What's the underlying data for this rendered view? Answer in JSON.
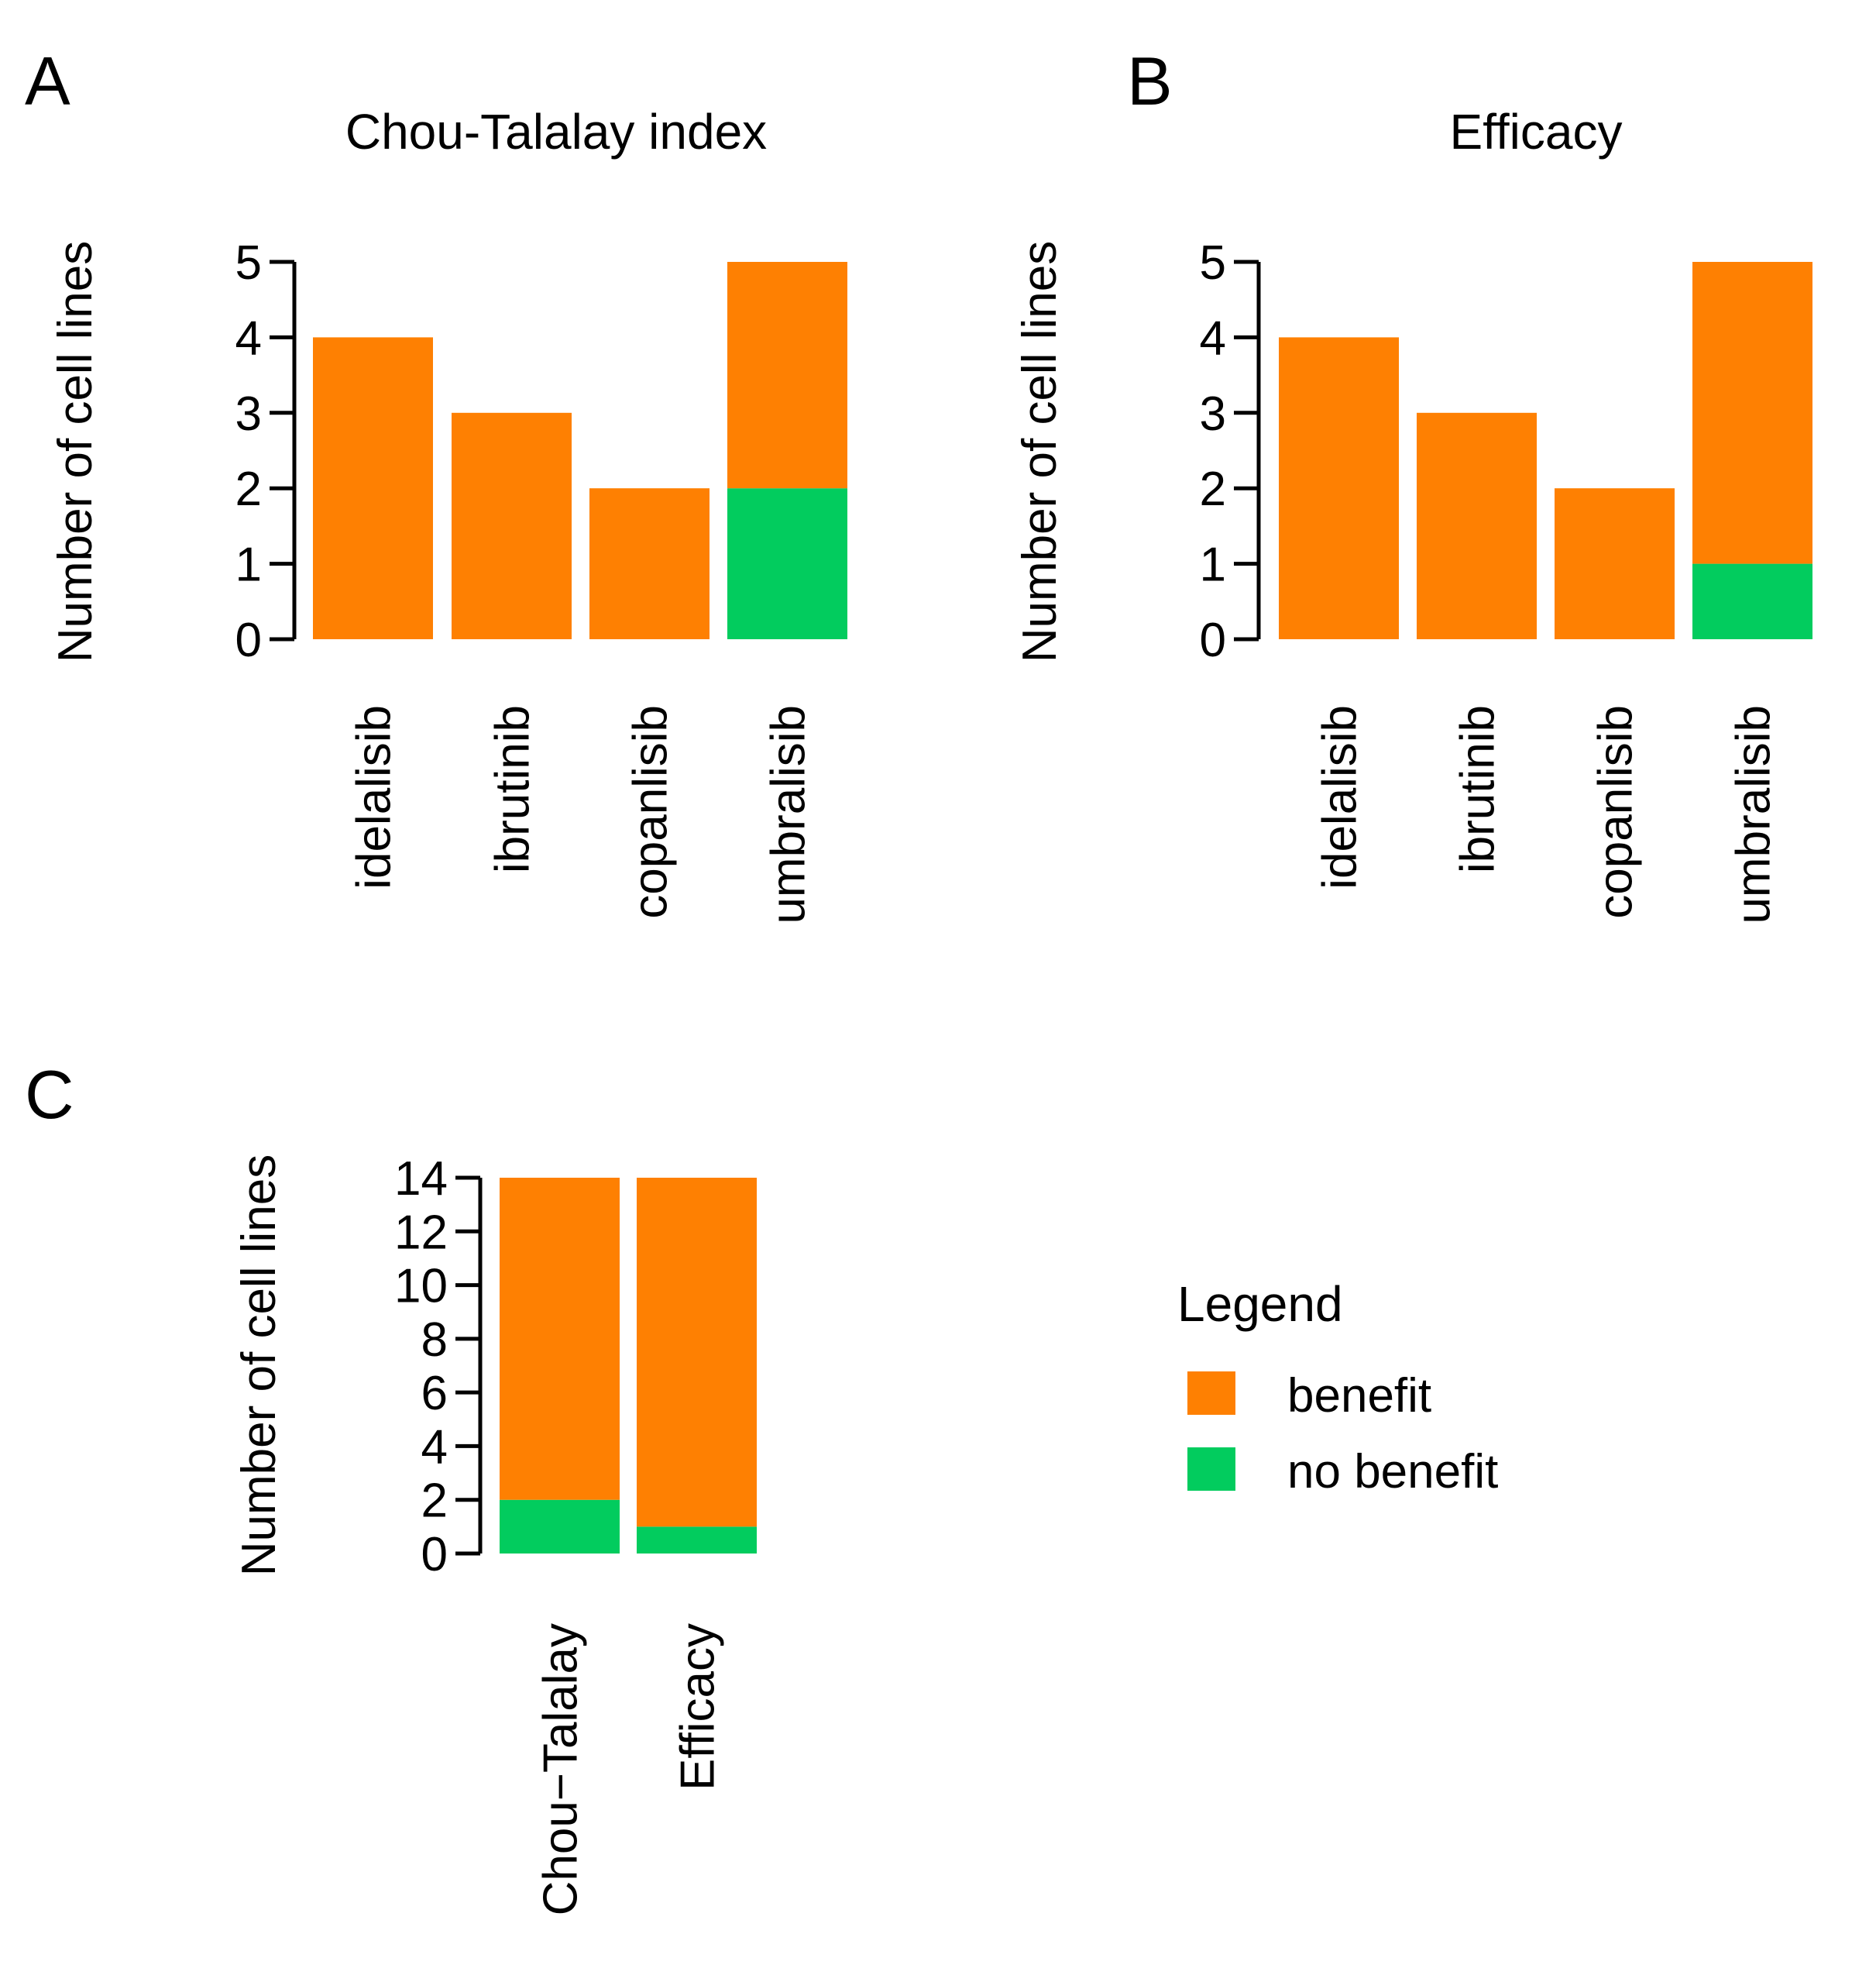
{
  "colors": {
    "benefit": "#fe8002",
    "no_benefit": "#02cc5e",
    "axis": "#000000",
    "background": "#ffffff"
  },
  "legend": {
    "title": "Legend",
    "items": [
      {
        "label": "benefit",
        "color": "#fe8002"
      },
      {
        "label": "no benefit",
        "color": "#02cc5e"
      }
    ]
  },
  "chart_data": [
    {
      "panel": "A",
      "type": "bar",
      "stacked": true,
      "title": "Chou-Talalay index",
      "xlabel": "",
      "ylabel": "Number of cell lines",
      "categories": [
        "idelalisib",
        "ibrutinib",
        "copanlisib",
        "umbralisib"
      ],
      "series": [
        {
          "name": "no benefit",
          "values": [
            0,
            0,
            0,
            2
          ]
        },
        {
          "name": "benefit",
          "values": [
            4,
            3,
            2,
            3
          ]
        }
      ],
      "ylim": [
        0,
        5
      ],
      "yticks": [
        "0",
        "1",
        "2",
        "3",
        "4",
        "5"
      ],
      "grid": false
    },
    {
      "panel": "B",
      "type": "bar",
      "stacked": true,
      "title": "Efficacy",
      "xlabel": "",
      "ylabel": "Number of cell lines",
      "categories": [
        "idelalisib",
        "ibrutinib",
        "copanlisib",
        "umbralisib"
      ],
      "series": [
        {
          "name": "no benefit",
          "values": [
            0,
            0,
            0,
            1
          ]
        },
        {
          "name": "benefit",
          "values": [
            4,
            3,
            2,
            4
          ]
        }
      ],
      "ylim": [
        0,
        5
      ],
      "yticks": [
        "0",
        "1",
        "2",
        "3",
        "4",
        "5"
      ],
      "grid": false
    },
    {
      "panel": "C",
      "type": "bar",
      "stacked": true,
      "title": "",
      "xlabel": "",
      "ylabel": "Number of cell lines",
      "categories": [
        "Chou−Talalay",
        "Efficacy"
      ],
      "series": [
        {
          "name": "no benefit",
          "values": [
            2,
            1
          ]
        },
        {
          "name": "benefit",
          "values": [
            12,
            13
          ]
        }
      ],
      "ylim": [
        0,
        14
      ],
      "yticks": [
        "0",
        "2",
        "4",
        "6",
        "8",
        "10",
        "12",
        "14"
      ],
      "grid": false
    }
  ]
}
